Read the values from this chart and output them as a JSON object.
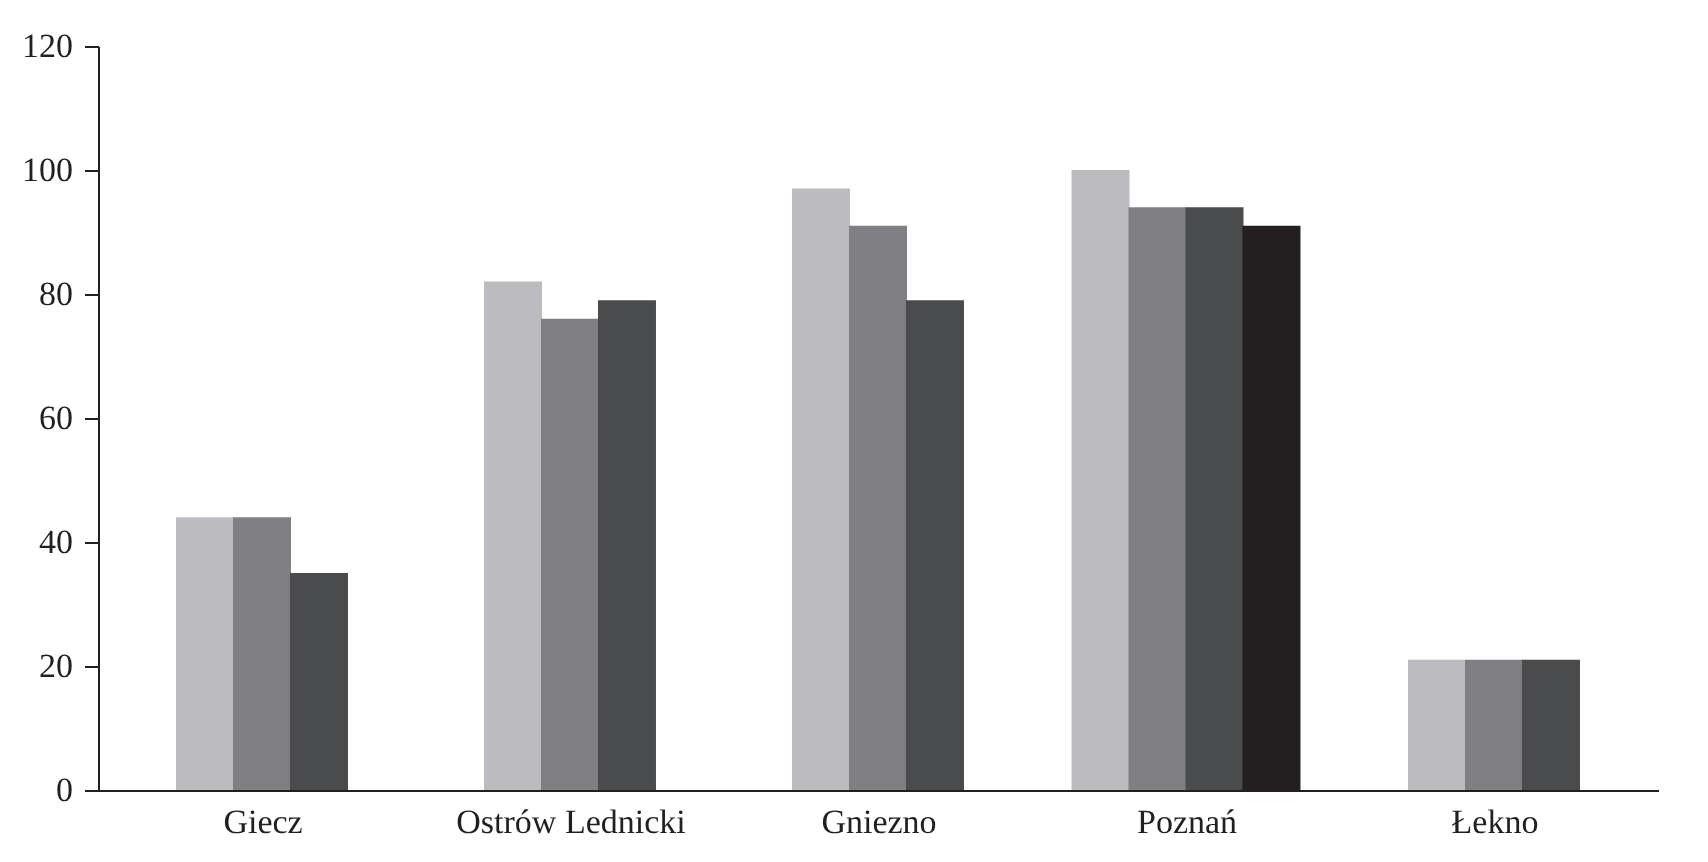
{
  "chart_data": {
    "type": "bar",
    "categories": [
      "Giecz",
      "Ostrów Lednicki",
      "Gniezno",
      "Poznań",
      "Łekno"
    ],
    "series": [
      {
        "color": "#bcbcc0",
        "values": [
          44,
          82,
          97,
          100,
          21
        ]
      },
      {
        "color": "#808084",
        "values": [
          44,
          76,
          91,
          94,
          21
        ]
      },
      {
        "color": "#4a4b4d",
        "values": [
          35,
          79,
          79,
          94,
          21
        ]
      },
      {
        "color": "#231f20",
        "values": [
          null,
          null,
          null,
          91,
          null
        ]
      }
    ],
    "ylim": [
      0,
      120
    ],
    "yticks": [
      0,
      20,
      40,
      60,
      80,
      100,
      120
    ],
    "grid": false,
    "legend": false
  }
}
